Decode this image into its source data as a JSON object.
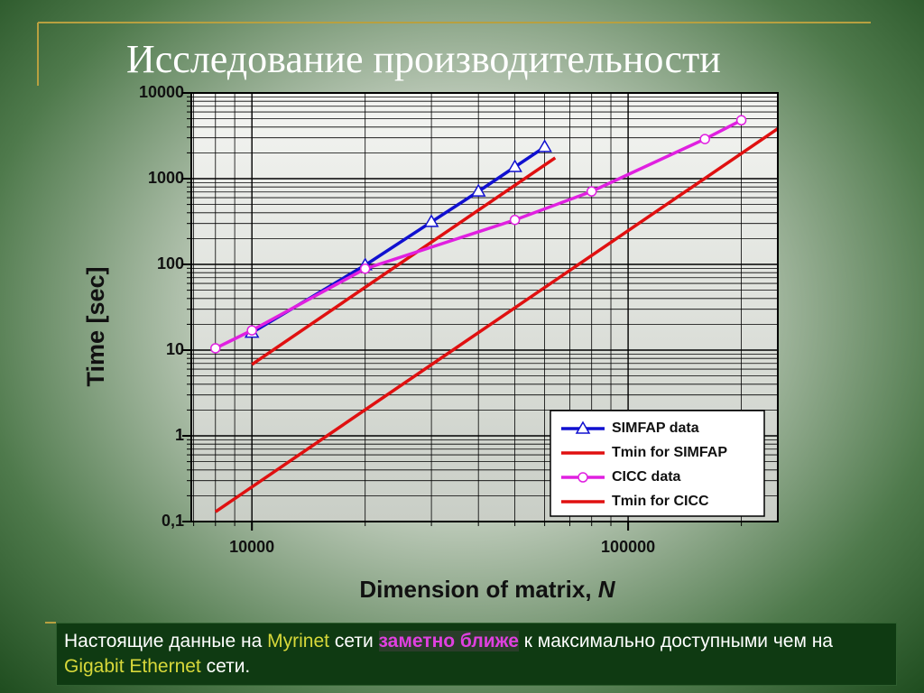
{
  "chart_data": {
    "type": "line",
    "title": "Исследование производительности",
    "xlabel": "Dimension of matrix,",
    "xlabel_symbol": "N",
    "ylabel": "Time [sec]",
    "xscale": "log",
    "yscale": "log",
    "xlim": [
      6900,
      250000
    ],
    "ylim": [
      0.1,
      10000
    ],
    "xticks": [
      10000,
      100000
    ],
    "yticks": [
      {
        "value": 0.1,
        "label": "0,1"
      },
      1,
      10,
      100,
      1000,
      10000
    ],
    "grid": true,
    "legend": "lower right",
    "series": [
      {
        "name": "SIMFAP data",
        "color": "#1010d0",
        "marker": "triangle",
        "x": [
          10000,
          20000,
          30000,
          40000,
          50000,
          60000
        ],
        "values": [
          16,
          98,
          313,
          710,
          1370,
          2340
        ]
      },
      {
        "name": "Tmin for SIMFAP",
        "color": "#e01010",
        "marker": "none",
        "x": [
          10000,
          64000
        ],
        "values": [
          6.8,
          1750
        ]
      },
      {
        "name": "CICC data",
        "color": "#e020e0",
        "marker": "circle",
        "x": [
          8000,
          10000,
          20000,
          50000,
          80000,
          160000,
          200000
        ],
        "values": [
          10.5,
          17,
          89,
          330,
          710,
          2900,
          4800
        ]
      },
      {
        "name": "Tmin for CICC",
        "color": "#e01010",
        "marker": "none",
        "x": [
          8000,
          250000
        ],
        "values": [
          0.13,
          3830
        ]
      }
    ],
    "caption": [
      "Настоящие данные на ",
      "Myrinet",
      " сети ",
      "заметно ближе",
      " к максимально доступными чем на ",
      "Gigabit Ethernet",
      " сети."
    ]
  }
}
